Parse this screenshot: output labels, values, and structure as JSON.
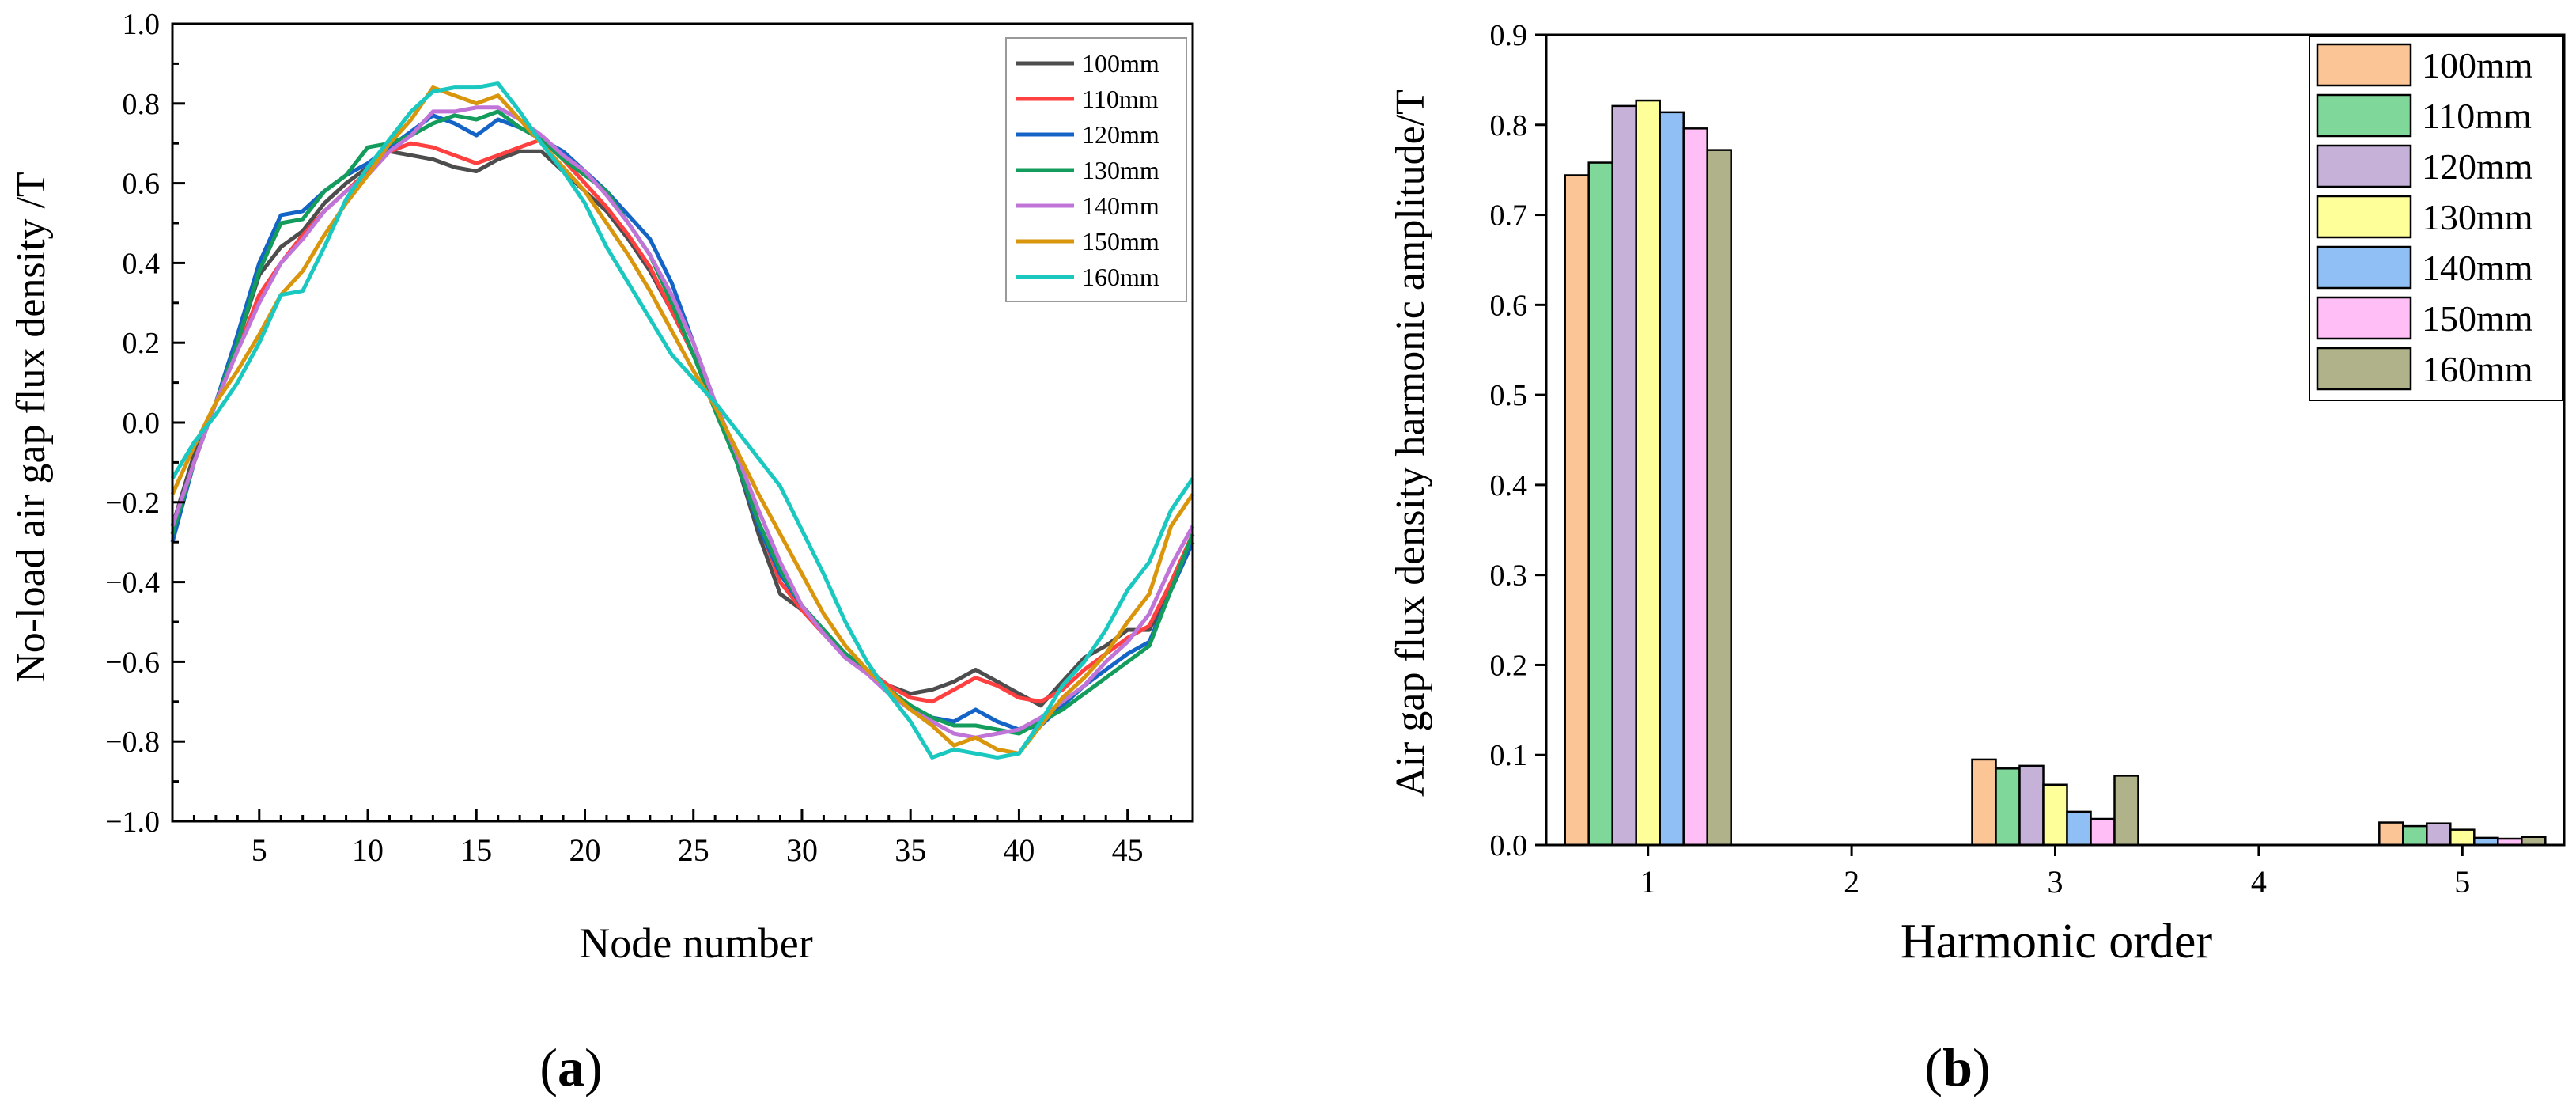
{
  "chart_data": [
    {
      "type": "line",
      "panel_label": "a",
      "xlabel": "Node number",
      "ylabel": "No-load air gap flux density /T",
      "xlim": [
        1,
        48
      ],
      "ylim": [
        -1.0,
        1.0
      ],
      "xticks": [
        5,
        10,
        15,
        20,
        25,
        30,
        35,
        40,
        45
      ],
      "yticks": [
        -1.0,
        -0.8,
        -0.6,
        -0.4,
        -0.2,
        0.0,
        0.2,
        0.4,
        0.6,
        0.8,
        1.0
      ],
      "ytick_labels": [
        "−1.0",
        "−0.8",
        "−0.6",
        "−0.4",
        "−0.2",
        "0.0",
        "0.2",
        "0.4",
        "0.6",
        "0.8",
        "1.0"
      ],
      "legend_position": "top-right",
      "x": [
        1,
        2,
        3,
        4,
        5,
        6,
        7,
        8,
        9,
        10,
        11,
        12,
        13,
        14,
        15,
        16,
        17,
        18,
        19,
        20,
        21,
        22,
        23,
        24,
        25,
        26,
        27,
        28,
        29,
        30,
        31,
        32,
        33,
        34,
        35,
        36,
        37,
        38,
        39,
        40,
        41,
        42,
        43,
        44,
        45,
        46,
        47,
        48
      ],
      "series": [
        {
          "name": "100mm",
          "color": "#4d4d4d",
          "values": [
            -0.26,
            -0.08,
            0.05,
            0.2,
            0.37,
            0.44,
            0.48,
            0.55,
            0.6,
            0.64,
            0.68,
            0.67,
            0.66,
            0.64,
            0.63,
            0.66,
            0.68,
            0.68,
            0.63,
            0.58,
            0.53,
            0.46,
            0.38,
            0.28,
            0.17,
            0.05,
            -0.1,
            -0.28,
            -0.43,
            -0.47,
            -0.53,
            -0.58,
            -0.62,
            -0.66,
            -0.68,
            -0.67,
            -0.65,
            -0.62,
            -0.65,
            -0.68,
            -0.71,
            -0.65,
            -0.59,
            -0.56,
            -0.52,
            -0.52,
            -0.42,
            -0.3
          ]
        },
        {
          "name": "110mm",
          "color": "#ff4040",
          "values": [
            -0.28,
            -0.1,
            0.05,
            0.18,
            0.32,
            0.4,
            0.47,
            0.53,
            0.58,
            0.63,
            0.68,
            0.7,
            0.69,
            0.67,
            0.65,
            0.67,
            0.69,
            0.71,
            0.66,
            0.6,
            0.54,
            0.47,
            0.39,
            0.28,
            0.17,
            0.05,
            -0.08,
            -0.25,
            -0.4,
            -0.47,
            -0.53,
            -0.58,
            -0.62,
            -0.66,
            -0.69,
            -0.7,
            -0.67,
            -0.64,
            -0.66,
            -0.69,
            -0.7,
            -0.67,
            -0.62,
            -0.58,
            -0.54,
            -0.51,
            -0.4,
            -0.28
          ]
        },
        {
          "name": "120mm",
          "color": "#1464c8",
          "values": [
            -0.3,
            -0.1,
            0.05,
            0.22,
            0.4,
            0.52,
            0.53,
            0.58,
            0.62,
            0.65,
            0.69,
            0.73,
            0.77,
            0.75,
            0.72,
            0.76,
            0.74,
            0.71,
            0.68,
            0.63,
            0.58,
            0.52,
            0.46,
            0.35,
            0.2,
            0.05,
            -0.1,
            -0.26,
            -0.38,
            -0.46,
            -0.52,
            -0.58,
            -0.62,
            -0.67,
            -0.71,
            -0.74,
            -0.75,
            -0.72,
            -0.75,
            -0.77,
            -0.76,
            -0.71,
            -0.66,
            -0.62,
            -0.58,
            -0.55,
            -0.42,
            -0.3
          ]
        },
        {
          "name": "130mm",
          "color": "#139c5c",
          "values": [
            -0.28,
            -0.1,
            0.05,
            0.2,
            0.38,
            0.5,
            0.51,
            0.58,
            0.62,
            0.69,
            0.7,
            0.72,
            0.75,
            0.77,
            0.76,
            0.78,
            0.74,
            0.71,
            0.66,
            0.62,
            0.58,
            0.5,
            0.42,
            0.3,
            0.17,
            0.03,
            -0.1,
            -0.25,
            -0.37,
            -0.46,
            -0.52,
            -0.58,
            -0.62,
            -0.67,
            -0.71,
            -0.74,
            -0.76,
            -0.76,
            -0.77,
            -0.78,
            -0.75,
            -0.72,
            -0.68,
            -0.64,
            -0.6,
            -0.56,
            -0.42,
            -0.28
          ]
        },
        {
          "name": "140mm",
          "color": "#c074d8",
          "values": [
            -0.26,
            -0.1,
            0.05,
            0.18,
            0.3,
            0.4,
            0.46,
            0.53,
            0.58,
            0.62,
            0.68,
            0.72,
            0.78,
            0.78,
            0.79,
            0.79,
            0.76,
            0.72,
            0.67,
            0.63,
            0.57,
            0.5,
            0.42,
            0.32,
            0.2,
            0.05,
            -0.08,
            -0.22,
            -0.35,
            -0.46,
            -0.53,
            -0.59,
            -0.63,
            -0.68,
            -0.72,
            -0.75,
            -0.78,
            -0.79,
            -0.78,
            -0.77,
            -0.74,
            -0.7,
            -0.66,
            -0.6,
            -0.55,
            -0.48,
            -0.36,
            -0.26
          ]
        },
        {
          "name": "150mm",
          "color": "#d9950c",
          "values": [
            -0.18,
            -0.06,
            0.05,
            0.13,
            0.22,
            0.32,
            0.38,
            0.47,
            0.55,
            0.62,
            0.7,
            0.76,
            0.84,
            0.82,
            0.8,
            0.82,
            0.76,
            0.7,
            0.64,
            0.58,
            0.5,
            0.42,
            0.33,
            0.23,
            0.13,
            0.04,
            -0.07,
            -0.18,
            -0.28,
            -0.38,
            -0.48,
            -0.56,
            -0.62,
            -0.67,
            -0.72,
            -0.76,
            -0.81,
            -0.79,
            -0.82,
            -0.83,
            -0.76,
            -0.69,
            -0.64,
            -0.58,
            -0.5,
            -0.43,
            -0.26,
            -0.18
          ]
        },
        {
          "name": "160mm",
          "color": "#1bc8c0",
          "values": [
            -0.14,
            -0.05,
            0.02,
            0.1,
            0.2,
            0.32,
            0.33,
            0.44,
            0.56,
            0.64,
            0.71,
            0.78,
            0.83,
            0.84,
            0.84,
            0.85,
            0.78,
            0.7,
            0.63,
            0.55,
            0.44,
            0.35,
            0.26,
            0.17,
            0.11,
            0.05,
            -0.02,
            -0.09,
            -0.16,
            -0.27,
            -0.38,
            -0.5,
            -0.6,
            -0.68,
            -0.75,
            -0.84,
            -0.82,
            -0.83,
            -0.84,
            -0.83,
            -0.75,
            -0.66,
            -0.6,
            -0.52,
            -0.42,
            -0.35,
            -0.22,
            -0.14
          ]
        }
      ]
    },
    {
      "type": "bar",
      "panel_label": "b",
      "xlabel": "Harmonic order",
      "ylabel": "Air gap flux density harmonic amplitude/T",
      "categories": [
        "1",
        "2",
        "3",
        "4",
        "5"
      ],
      "ylim": [
        0.0,
        0.9
      ],
      "yticks": [
        0.0,
        0.1,
        0.2,
        0.3,
        0.4,
        0.5,
        0.6,
        0.7,
        0.8,
        0.9
      ],
      "ytick_labels": [
        "0.0",
        "0.1",
        "0.2",
        "0.3",
        "0.4",
        "0.5",
        "0.6",
        "0.7",
        "0.8",
        "0.9"
      ],
      "legend_position": "top-right",
      "series": [
        {
          "name": "100mm",
          "color": "#fcc596",
          "values": [
            0.744,
            0,
            0.095,
            0,
            0.025
          ]
        },
        {
          "name": "110mm",
          "color": "#7fd89a",
          "values": [
            0.758,
            0,
            0.085,
            0,
            0.021
          ]
        },
        {
          "name": "120mm",
          "color": "#c6b1d8",
          "values": [
            0.821,
            0,
            0.088,
            0,
            0.024
          ]
        },
        {
          "name": "130mm",
          "color": "#ffff9a",
          "values": [
            0.827,
            0,
            0.067,
            0,
            0.017
          ]
        },
        {
          "name": "140mm",
          "color": "#8fbff4",
          "values": [
            0.814,
            0,
            0.037,
            0,
            0.008
          ]
        },
        {
          "name": "150mm",
          "color": "#ffbef6",
          "values": [
            0.796,
            0,
            0.029,
            0,
            0.007
          ]
        },
        {
          "name": "160mm",
          "color": "#b0b28a",
          "values": [
            0.772,
            0,
            0.077,
            0,
            0.009
          ]
        }
      ]
    }
  ]
}
